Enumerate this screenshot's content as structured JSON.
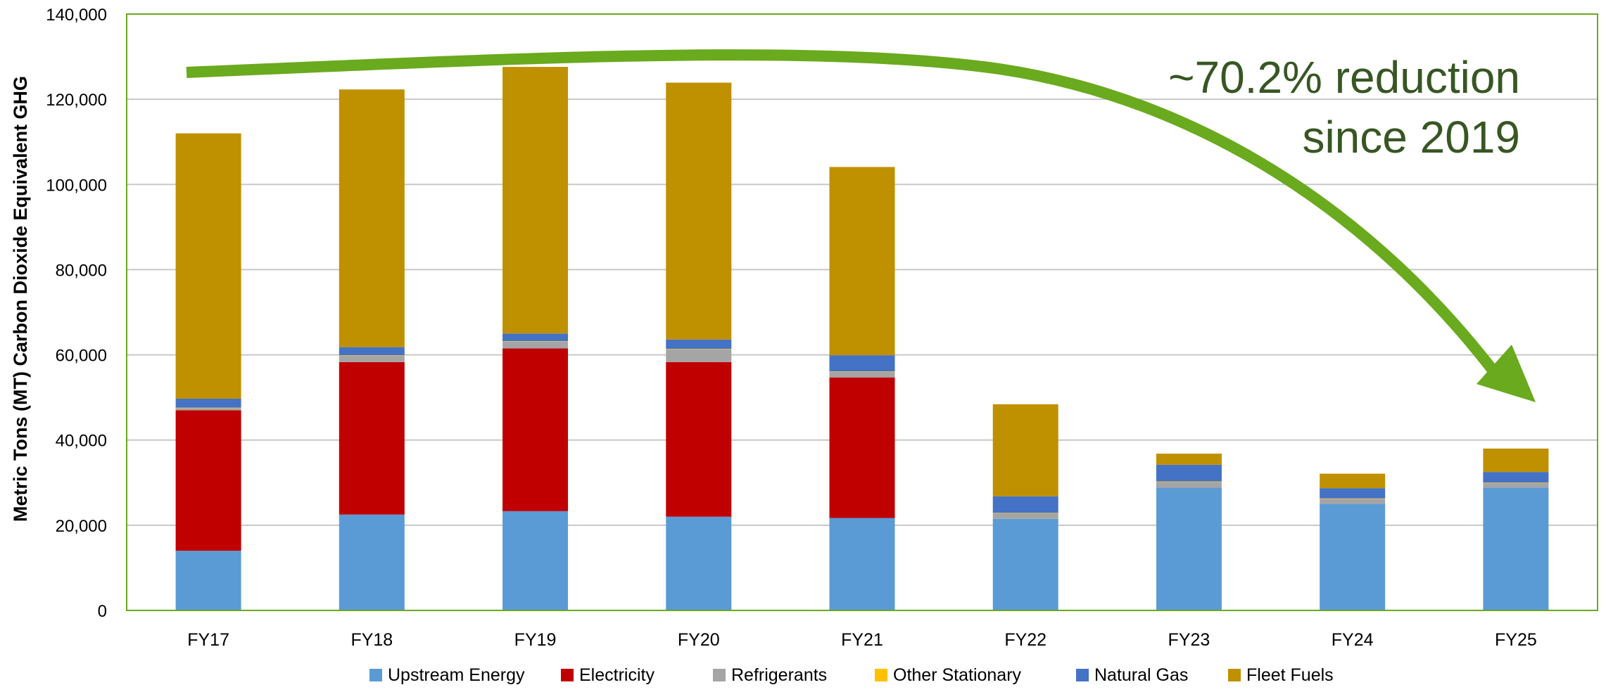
{
  "chart_data": {
    "type": "bar",
    "stacked": true,
    "title": "",
    "xlabel": "",
    "ylabel": "Metric Tons (MT) Carbon Dioxide Equivalent GHG",
    "ylim": [
      0,
      140000
    ],
    "yticks": [
      0,
      20000,
      40000,
      60000,
      80000,
      100000,
      120000,
      140000
    ],
    "ytick_labels": [
      "0",
      "20,000",
      "40,000",
      "60,000",
      "80,000",
      "100,000",
      "120,000",
      "140,000"
    ],
    "grid": "horizontal",
    "legend_position": "bottom",
    "categories": [
      "FY17",
      "FY18",
      "FY19",
      "FY20",
      "FY21",
      "FY22",
      "FY23",
      "FY24",
      "FY25"
    ],
    "series": [
      {
        "name": "Upstream Energy",
        "color": "#5b9bd5",
        "values": [
          14000,
          22500,
          23300,
          22000,
          21700,
          21500,
          28800,
          25000,
          28800
        ]
      },
      {
        "name": "Electricity",
        "color": "#c00000",
        "values": [
          33000,
          35800,
          38200,
          36300,
          33000,
          0,
          0,
          0,
          0
        ]
      },
      {
        "name": "Refrigerants",
        "color": "#a5a5a5",
        "values": [
          500,
          1500,
          1600,
          3000,
          1300,
          1300,
          1400,
          1200,
          1100
        ]
      },
      {
        "name": "Other Stationary",
        "color": "#ffc000",
        "values": [
          100,
          100,
          100,
          100,
          100,
          100,
          100,
          100,
          100
        ]
      },
      {
        "name": "Natural Gas",
        "color": "#4472c4",
        "values": [
          2100,
          1900,
          1800,
          2200,
          3800,
          3900,
          3900,
          2400,
          2500
        ]
      },
      {
        "name": "Fleet Fuels",
        "color": "#bf9000",
        "values": [
          62300,
          60500,
          62600,
          60300,
          44200,
          21600,
          2600,
          3400,
          5500
        ]
      }
    ],
    "annotation": {
      "text_lines": [
        "~70.2% reduction",
        "since 2019"
      ],
      "color": "#375623",
      "arrow_color": "#6aaa1e"
    },
    "axis_color": "#6aaa1e",
    "grid_color": "#c8c8c8"
  }
}
